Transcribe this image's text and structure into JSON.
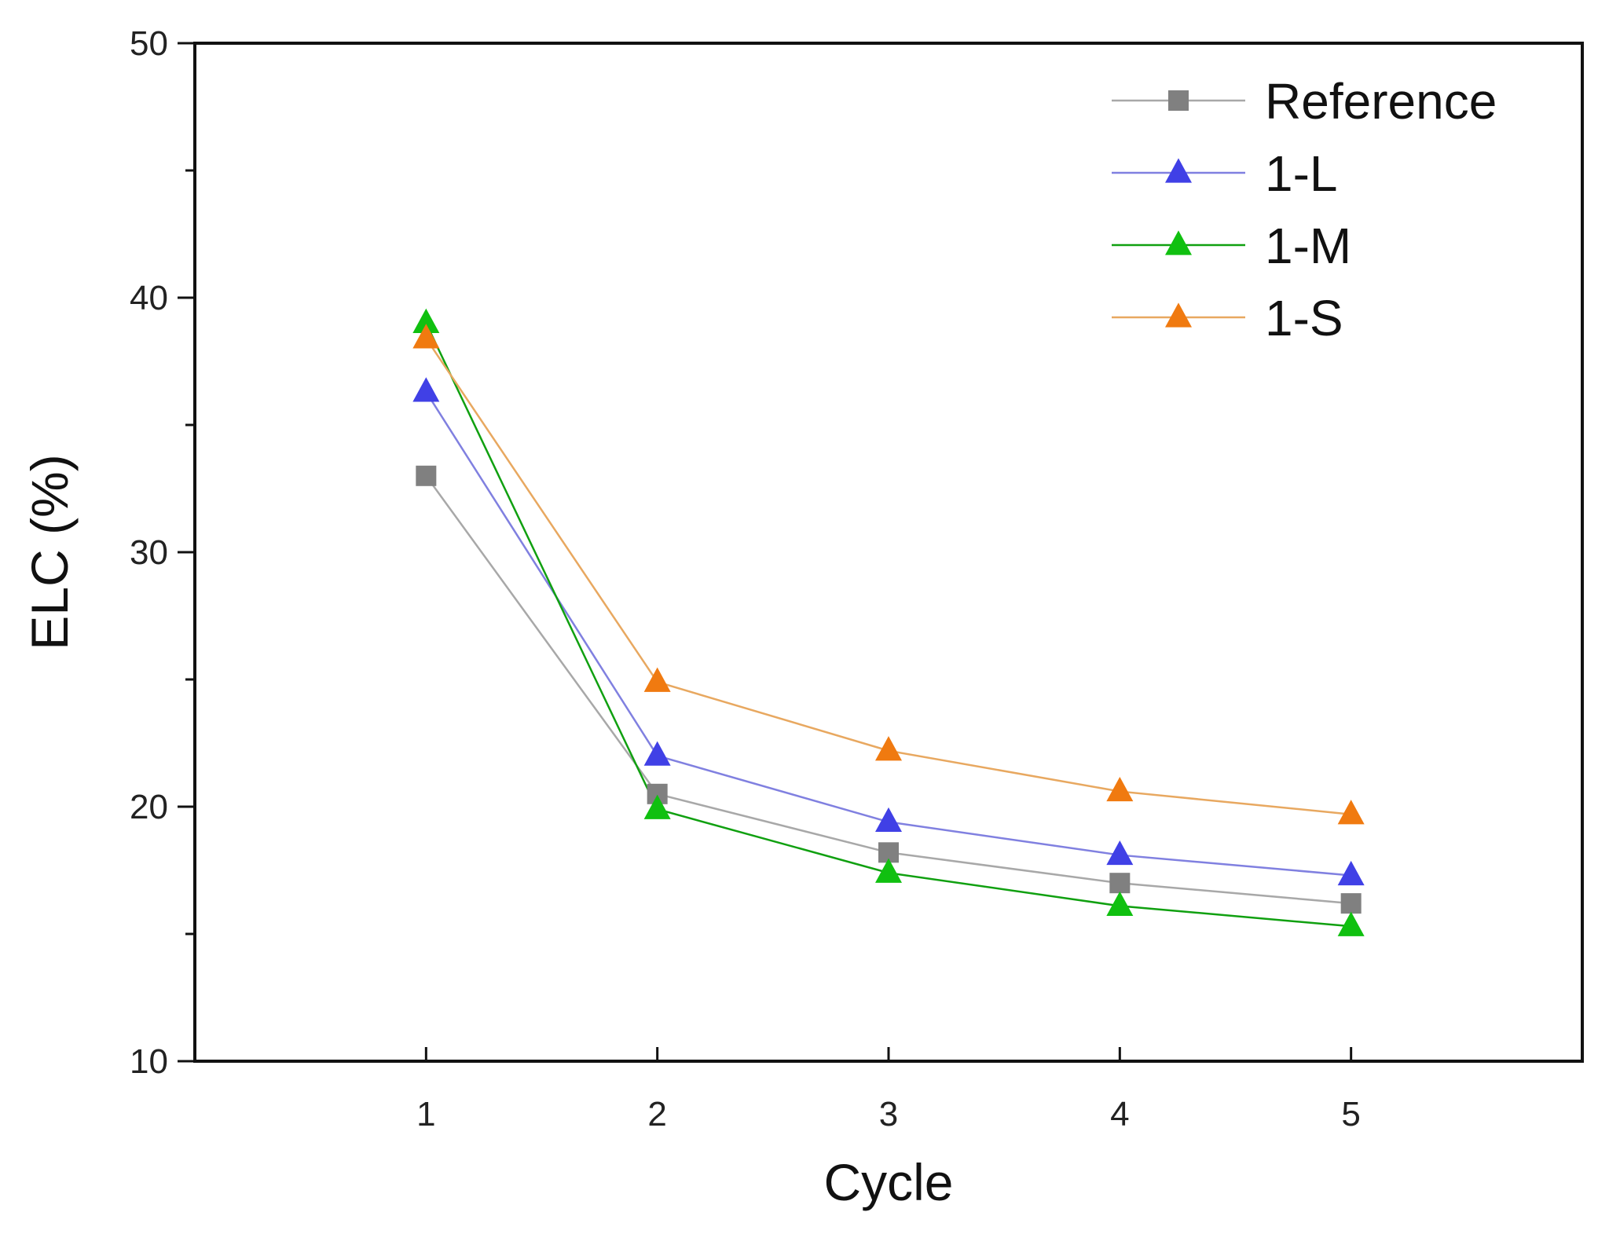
{
  "chart_data": {
    "type": "line",
    "title": "",
    "xlabel": "Cycle",
    "ylabel": "ELC (%)",
    "x": [
      1,
      2,
      3,
      4,
      5
    ],
    "xlim": [
      0,
      6
    ],
    "ylim": [
      10,
      50
    ],
    "x_ticks": [
      1,
      2,
      3,
      4,
      5
    ],
    "y_ticks": [
      10,
      20,
      30,
      40,
      50
    ],
    "grid": false,
    "legend_position": "top-right",
    "series": [
      {
        "name": "Reference",
        "marker": "square",
        "color": "#808080",
        "line_color": "#a8a8a8",
        "values": [
          33.0,
          20.5,
          18.2,
          17.0,
          16.2
        ]
      },
      {
        "name": "1-L",
        "marker": "triangle",
        "color": "#4040e6",
        "line_color": "#8080e0",
        "values": [
          36.3,
          22.0,
          19.4,
          18.1,
          17.3
        ]
      },
      {
        "name": "1-M",
        "marker": "triangle",
        "color": "#10c010",
        "line_color": "#10a010",
        "values": [
          39.0,
          19.9,
          17.4,
          16.1,
          15.3
        ]
      },
      {
        "name": "1-S",
        "marker": "triangle",
        "color": "#f07a10",
        "line_color": "#e8a860",
        "values": [
          38.4,
          24.9,
          22.2,
          20.6,
          19.7
        ]
      }
    ]
  }
}
